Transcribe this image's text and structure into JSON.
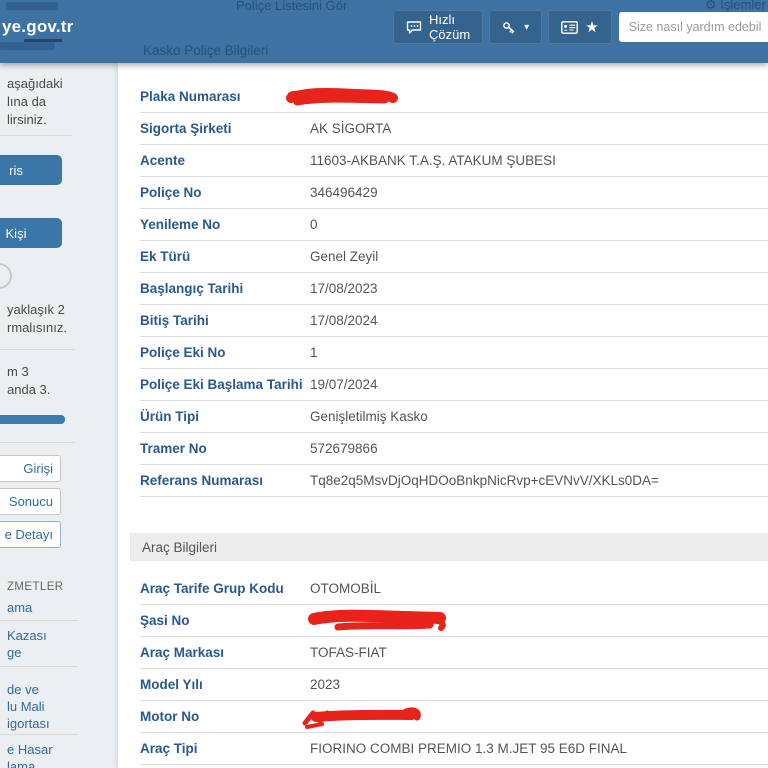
{
  "colors": {
    "header_bg": "#3e72a3",
    "accent_blue": "#2d6da3",
    "label_blue": "#29588f",
    "redaction": "#e8231c"
  },
  "header": {
    "logo": "ye.gov.tr",
    "quick_solution": "Hızlı Çözüm",
    "search_placeholder": "Size nasıl yardım edebilirim",
    "icons": {
      "quick_solution": "speech-bubble-icon",
      "auth": "key-icon",
      "auth_caret": "chevron-down-icon",
      "profile_card": "id-card-icon",
      "favorite": "star-icon",
      "ghost_settings": "gear-icon"
    },
    "ghost": {
      "list_link": "Poliçe Listesini Gör",
      "page_title": "Kasko Poliçe Bilgileri",
      "actions": "İşlemler",
      "settings_glyph": "⚙"
    },
    "caret_glyph": "▾",
    "star_glyph": "★"
  },
  "sidebar": {
    "intro_lines": [
      "aşağıdaki",
      "lına da",
      "lirsiniz."
    ],
    "primary_buttons": [
      "ris",
      "Kişi"
    ],
    "note_lines": [
      "yaklaşık 2",
      "rmalısınız."
    ],
    "step_lines": [
      "m 3",
      "anda 3."
    ],
    "outline_buttons": [
      "Girişi",
      "Sonucu",
      "e Detayı"
    ],
    "services_heading": "ZMETLER",
    "service_links": [
      [
        "ama"
      ],
      [
        "Kazası",
        "ge"
      ],
      [
        "de ve",
        "lu Mali",
        "igortası"
      ],
      [
        "e Hasar",
        "lama"
      ]
    ]
  },
  "policy": {
    "fields": [
      {
        "label": "Plaka Numarası",
        "value": "",
        "redacted": true,
        "scribble": "plaka"
      },
      {
        "label": "Sigorta Şirketi",
        "value": "AK SİGORTA"
      },
      {
        "label": "Acente",
        "value": "11603-AKBANK T.A.Ş. ATAKUM ŞUBESI"
      },
      {
        "label": "Poliçe No",
        "value": "346496429"
      },
      {
        "label": "Yenileme No",
        "value": "0"
      },
      {
        "label": "Ek Türü",
        "value": "Genel Zeyil"
      },
      {
        "label": "Başlangıç Tarihi",
        "value": "17/08/2023"
      },
      {
        "label": "Bitiş Tarihi",
        "value": "17/08/2024"
      },
      {
        "label": "Poliçe Eki No",
        "value": "1"
      },
      {
        "label": "Poliçe Eki Başlama Tarihi",
        "value": "19/07/2024"
      },
      {
        "label": "Ürün Tipi",
        "value": "Genişletilmiş Kasko"
      },
      {
        "label": "Tramer No",
        "value": "572679866"
      },
      {
        "label": "Referans Numarası",
        "value": "Tq8e2q5MsvDjOqHDOoBnkpNicRvp+cEVNvV/XKLs0DA="
      }
    ]
  },
  "vehicle": {
    "heading": "Araç Bilgileri",
    "fields": [
      {
        "label": "Araç Tarife Grup Kodu",
        "value": "OTOMOBİL"
      },
      {
        "label": "Şasi No",
        "value": "",
        "redacted": true,
        "scribble": "sasi"
      },
      {
        "label": "Araç Markası",
        "value": "TOFAS-FIAT"
      },
      {
        "label": "Model Yılı",
        "value": "2023"
      },
      {
        "label": "Motor No",
        "value": "",
        "redacted": true,
        "scribble": "motor"
      },
      {
        "label": "Araç Tipi",
        "value": "FIORINO COMBI PREMIO 1.3 M.JET 95 E6D FINAL"
      }
    ]
  }
}
